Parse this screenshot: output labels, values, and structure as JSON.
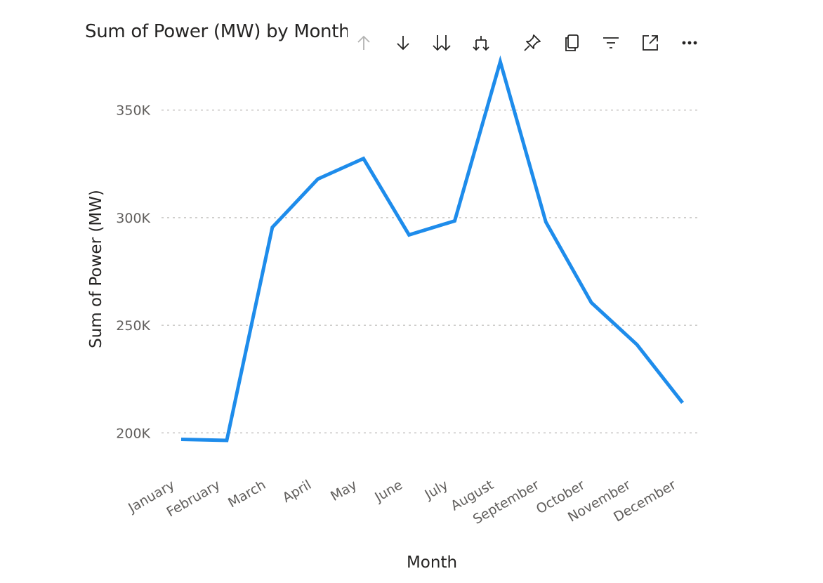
{
  "visual": {
    "title": "Sum of Power (MW) by Month"
  },
  "toolbar": [
    {
      "name": "drill-up-icon",
      "label": "Drill up",
      "enabled": false
    },
    {
      "name": "drill-down-icon",
      "label": "Drill down",
      "enabled": true
    },
    {
      "name": "next-level-icon",
      "label": "Go to the next level in the hierarchy",
      "enabled": true
    },
    {
      "name": "expand-hierarchy-icon",
      "label": "Expand all down one level in the hierarchy",
      "enabled": true
    },
    {
      "name": "pin-icon",
      "label": "Pin visual",
      "enabled": true
    },
    {
      "name": "copy-icon",
      "label": "Copy visual",
      "enabled": true
    },
    {
      "name": "filter-icon",
      "label": "Filters on this visual",
      "enabled": true
    },
    {
      "name": "focus-mode-icon",
      "label": "Focus mode",
      "enabled": true
    },
    {
      "name": "more-options-icon",
      "label": "More options",
      "enabled": true
    }
  ],
  "colors": {
    "line": "#1e8ceb",
    "grid": "#c8c6c4",
    "tick": "#605e5c",
    "title": "#252423"
  },
  "chart_data": {
    "type": "line",
    "title": "Sum of Power (MW) by Month",
    "xlabel": "Month",
    "ylabel": "Sum of Power (MW)",
    "categories": [
      "January",
      "February",
      "March",
      "April",
      "May",
      "June",
      "July",
      "August",
      "September",
      "October",
      "November",
      "December"
    ],
    "series": [
      {
        "values": [
          197000,
          196500,
          295500,
          318000,
          327500,
          292000,
          298500,
          372500,
          298000,
          260500,
          241000,
          214000
        ]
      }
    ],
    "ylim": [
      189000,
      377000
    ],
    "yticks": [
      200000,
      250000,
      300000,
      350000
    ],
    "ytick_labels": [
      "200K",
      "250K",
      "300K",
      "350K"
    ],
    "grid": true,
    "legend": "none"
  }
}
